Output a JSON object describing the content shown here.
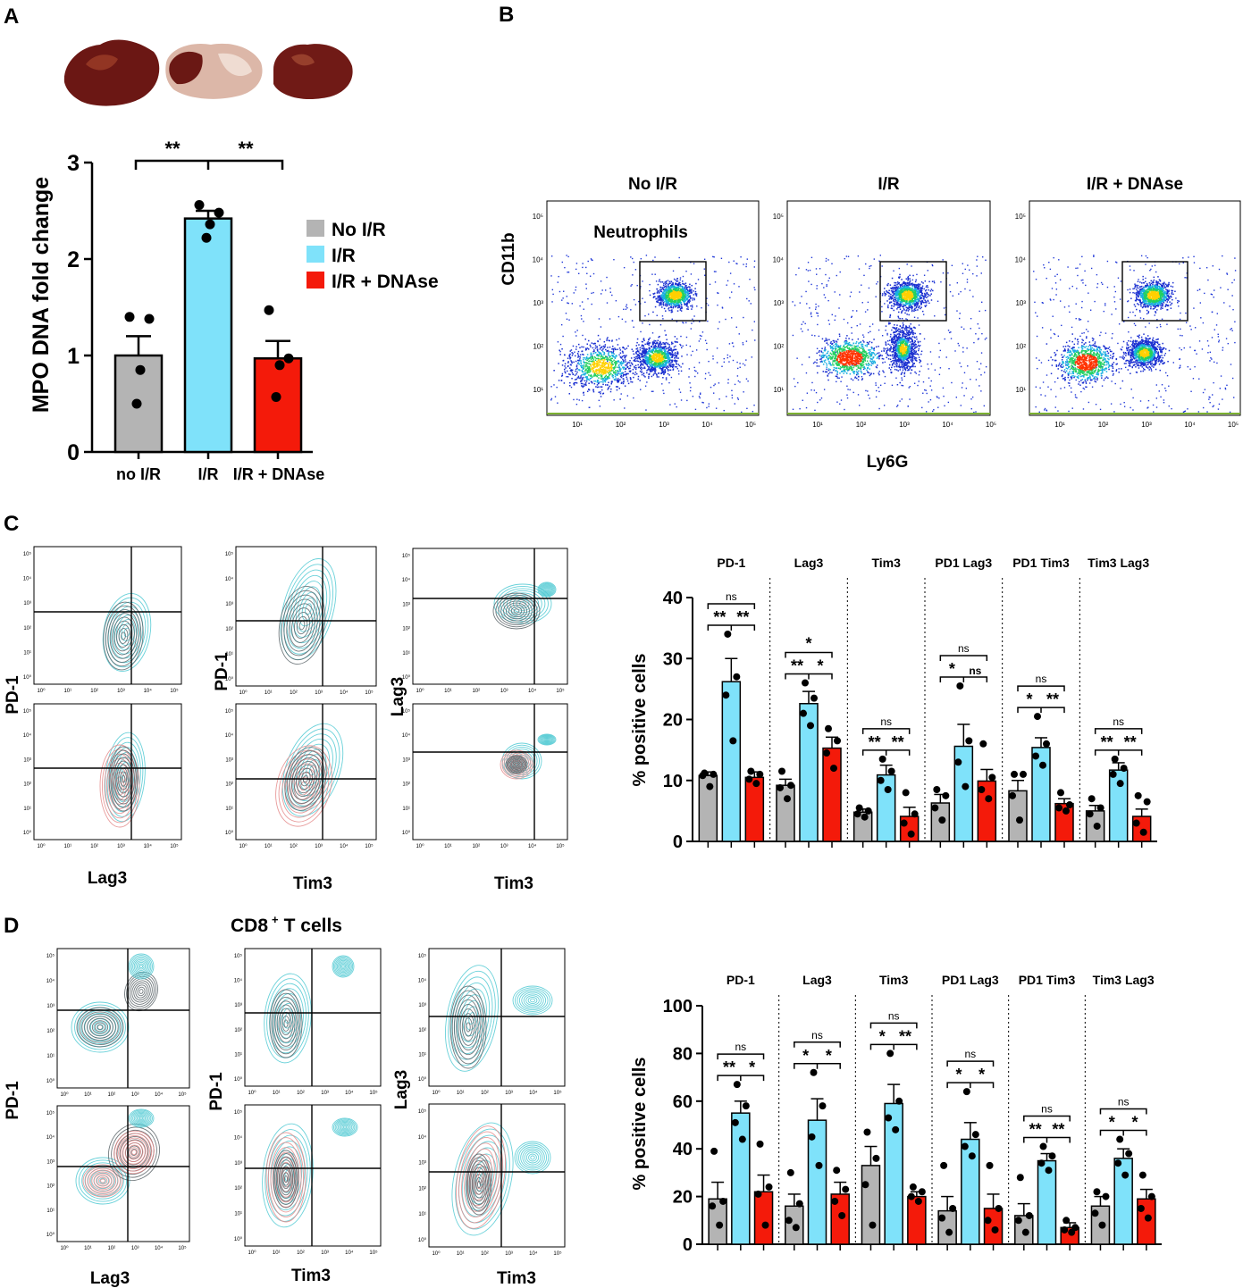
{
  "colors": {
    "gray": "#b4b4b4",
    "blue": "#7fe2fa",
    "red": "#f41a0a",
    "black": "#000000",
    "contour_gray": "#5a6468",
    "contour_cyan": "#4fc9d2",
    "contour_red": "#e48a8a",
    "liver": "#6e1a16"
  },
  "panels": {
    "A": {
      "letter": "A"
    },
    "B": {
      "letter": "B"
    },
    "C": {
      "letter": "C"
    },
    "D": {
      "letter": "D"
    }
  },
  "panelA": {
    "ylabel": "MPO DNA fold change",
    "ylim": [
      0,
      3
    ],
    "yticks": [
      "0",
      "1",
      "2",
      "3"
    ],
    "categories": [
      "no I/R",
      "I/R",
      "I/R + DNAse"
    ],
    "values": [
      1.0,
      2.42,
      0.97
    ],
    "errors": [
      0.2,
      0.08,
      0.18
    ],
    "points": [
      [
        1.4,
        1.38,
        0.85,
        0.5
      ],
      [
        2.56,
        2.48,
        2.36,
        2.22
      ],
      [
        1.47,
        0.97,
        0.9,
        0.57
      ]
    ],
    "legend": [
      "No I/R",
      "I/R",
      "I/R + DNAse"
    ],
    "sig": [
      "**",
      "**"
    ]
  },
  "panelB": {
    "titles": [
      "No I/R",
      "I/R",
      "I/R + DNAse"
    ],
    "gate_label": "Neutrophils",
    "ylabel": "CD11b",
    "xlabel": "Ly6G",
    "tick_labels": [
      "10¹",
      "10²",
      "10³",
      "10⁴",
      "10⁵"
    ]
  },
  "panelC": {
    "contour_xlabels": [
      "Lag3",
      "Tim3",
      "Tim3"
    ],
    "contour_ylabels": [
      "PD-1",
      "PD-1",
      "Lag3"
    ]
  },
  "panelD": {
    "title": "CD8",
    "title_sup": "+",
    "title_rest": "T cells",
    "contour_xlabels": [
      "Lag3",
      "Tim3",
      "Tim3"
    ],
    "contour_ylabels": [
      "PD-1",
      "PD-1",
      "Lag3"
    ]
  },
  "chart_data": [
    {
      "type": "bar",
      "title": "MPO DNA fold change",
      "categories": [
        "no I/R",
        "I/R",
        "I/R + DNAse"
      ],
      "values": [
        1.0,
        2.42,
        0.97
      ],
      "ylabel": "MPO DNA fold change",
      "ylim": [
        0,
        3
      ]
    },
    {
      "type": "bar",
      "title": "% positive cells (C)",
      "ylabel": "% positive cells",
      "ylim": [
        0,
        40
      ],
      "yticks": [
        "0",
        "10",
        "20",
        "30",
        "40"
      ],
      "groups": [
        {
          "name": "PD-1",
          "values": [
            10.8,
            26.2,
            10.5
          ],
          "errors": [
            0.6,
            3.8,
            0.9
          ],
          "points": [
            [
              11.2,
              11.0,
              10.8,
              9.0
            ],
            [
              34.0,
              27.0,
              24.0,
              16.5
            ],
            [
              11.5,
              11.0,
              10.2,
              9.5
            ]
          ],
          "sig_top": "ns",
          "sig_bottom": [
            "**",
            "**"
          ]
        },
        {
          "name": "Lag3",
          "values": [
            9.2,
            22.6,
            15.3
          ],
          "errors": [
            1.0,
            2.0,
            1.8
          ],
          "points": [
            [
              11.5,
              9.2,
              8.8,
              7.0
            ],
            [
              26.0,
              23.5,
              21.0,
              19.0
            ],
            [
              18.5,
              16.5,
              14.5,
              12.0
            ]
          ],
          "sig_top": "*",
          "sig_bottom": [
            "**",
            "*"
          ]
        },
        {
          "name": "Tim3",
          "values": [
            4.8,
            10.9,
            4.1
          ],
          "errors": [
            0.5,
            1.6,
            1.5
          ],
          "points": [
            [
              5.5,
              5.0,
              4.5,
              4.0
            ],
            [
              13.5,
              11.5,
              10.0,
              8.5
            ],
            [
              8.0,
              4.5,
              3.0,
              1.2
            ]
          ],
          "sig_top": "ns",
          "sig_bottom": [
            "**",
            "**"
          ]
        },
        {
          "name": "PD1 Lag3",
          "values": [
            6.3,
            15.6,
            9.9
          ],
          "errors": [
            1.4,
            3.6,
            1.9
          ],
          "points": [
            [
              8.5,
              7.5,
              5.5,
              3.5
            ],
            [
              25.5,
              16.5,
              13.0,
              9.0
            ],
            [
              16.0,
              10.5,
              8.5,
              7.0
            ]
          ],
          "sig_top": "ns",
          "sig_bottom": [
            "*",
            "ns"
          ]
        },
        {
          "name": "PD1 Tim3",
          "values": [
            8.3,
            15.4,
            6.2
          ],
          "errors": [
            1.7,
            1.6,
            0.8
          ],
          "points": [
            [
              11.0,
              11.0,
              7.5,
              3.5
            ],
            [
              20.5,
              16.0,
              14.0,
              12.5
            ],
            [
              8.0,
              6.0,
              5.5,
              5.0
            ]
          ],
          "sig_top": "ns",
          "sig_bottom": [
            "*",
            "**"
          ]
        },
        {
          "name": "Tim3 Lag3",
          "values": [
            5.0,
            11.7,
            4.1
          ],
          "errors": [
            0.9,
            1.2,
            1.2
          ],
          "points": [
            [
              7.0,
              5.5,
              4.5,
              2.5
            ],
            [
              13.5,
              12.0,
              11.0,
              9.5
            ],
            [
              7.5,
              6.5,
              3.0,
              1.5
            ]
          ],
          "sig_top": "ns",
          "sig_bottom": [
            "**",
            "**"
          ]
        }
      ]
    },
    {
      "type": "bar",
      "title": "% positive cells (D)",
      "ylabel": "% positive cells",
      "ylim": [
        0,
        100
      ],
      "yticks": [
        "0",
        "20",
        "40",
        "60",
        "80",
        "100"
      ],
      "groups": [
        {
          "name": "PD-1",
          "values": [
            19,
            55,
            22
          ],
          "errors": [
            7,
            5,
            7
          ],
          "points": [
            [
              39,
              18,
              16,
              8
            ],
            [
              67,
              58,
              51,
              44
            ],
            [
              42,
              24,
              21,
              8
            ]
          ],
          "sig_top": "ns",
          "sig_bottom": [
            "**",
            "*"
          ]
        },
        {
          "name": "Lag3",
          "values": [
            16,
            52,
            21
          ],
          "errors": [
            5,
            9,
            5
          ],
          "points": [
            [
              30,
              17,
              10,
              7
            ],
            [
              72,
              58,
              45,
              33
            ],
            [
              31,
              23,
              18,
              12
            ]
          ],
          "sig_top": "ns",
          "sig_bottom": [
            "*",
            "*"
          ]
        },
        {
          "name": "Tim3",
          "values": [
            33,
            59,
            20
          ],
          "errors": [
            8,
            8,
            2
          ],
          "points": [
            [
              47,
              36,
              25,
              8
            ],
            [
              80,
              60,
              53,
              48
            ],
            [
              24,
              22,
              20,
              18
            ]
          ],
          "sig_top": "ns",
          "sig_bottom": [
            "*",
            "**"
          ]
        },
        {
          "name": "PD1 Lag3",
          "values": [
            14,
            44,
            15
          ],
          "errors": [
            6,
            7,
            6
          ],
          "points": [
            [
              33,
              15,
              11,
              5
            ],
            [
              64,
              46,
              41,
              37
            ],
            [
              33,
              15,
              10,
              6
            ]
          ],
          "sig_top": "ns",
          "sig_bottom": [
            "*",
            "*"
          ]
        },
        {
          "name": "PD1 Tim3",
          "values": [
            12,
            35,
            7
          ],
          "errors": [
            5,
            3,
            2
          ],
          "points": [
            [
              28,
              12,
              10,
              5
            ],
            [
              41,
              37,
              34,
              31
            ],
            [
              10,
              7,
              6,
              5
            ]
          ],
          "sig_top": "ns",
          "sig_bottom": [
            "**",
            "**"
          ]
        },
        {
          "name": "Tim3 Lag3",
          "values": [
            16,
            36,
            19
          ],
          "errors": [
            4,
            4,
            4
          ],
          "points": [
            [
              22,
              20,
              13,
              8
            ],
            [
              44,
              38,
              34,
              29
            ],
            [
              29,
              20,
              15,
              11
            ]
          ],
          "sig_top": "ns",
          "sig_bottom": [
            "*",
            "*"
          ]
        }
      ]
    }
  ]
}
